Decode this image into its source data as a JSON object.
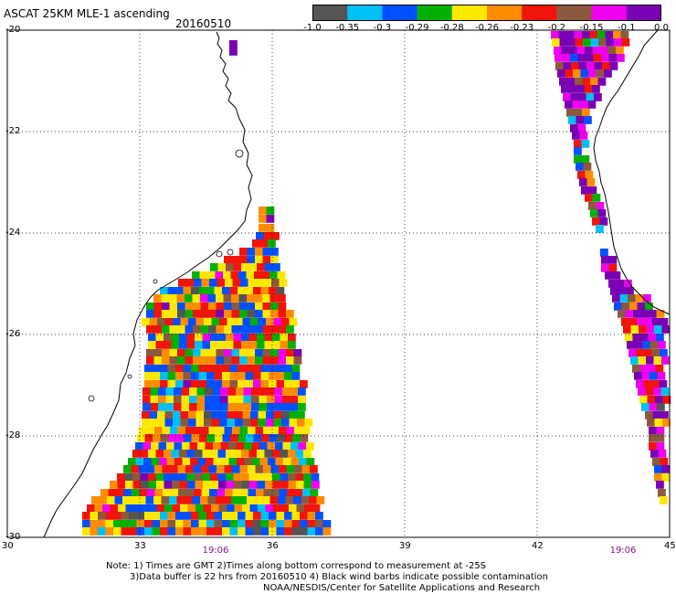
{
  "header": {
    "title": "ASCAT 25KM MLE-1 ascending",
    "date": "20160510"
  },
  "colorbar": {
    "colors": [
      "#555555",
      "#00bff5",
      "#0050ff",
      "#00b000",
      "#ffe800",
      "#ff8c00",
      "#f0140a",
      "#8b5a3c",
      "#ee00ee",
      "#7a00b4"
    ],
    "labels": [
      "-1.0",
      "-0.35",
      "-0.3",
      "-0.29",
      "-0.28",
      "-0.26",
      "-0.23",
      "-0.2",
      "-0.15",
      "-0.1",
      "0.0"
    ]
  },
  "axes": {
    "x_ticks": [
      "30",
      "33",
      "36",
      "39",
      "42",
      "45"
    ],
    "y_ticks": [
      "-20",
      "-22",
      "-24",
      "-26",
      "-28",
      "-30"
    ],
    "lon_range": [
      30,
      45
    ],
    "lat_range": [
      -30,
      -20
    ],
    "grid": "dotted"
  },
  "time_labels": [
    "19:06",
    "19:06"
  ],
  "notes": {
    "line1": "Note: 1) Times are GMT 2)Times along bottom correspond to measurement at -25S",
    "line2": "3)Data buffer is 22 hrs from 20160510 4) Black wind barbs indicate possible contamination",
    "line3": "NOAA/NESDIS/Center for Satellite Applications and Research"
  }
}
